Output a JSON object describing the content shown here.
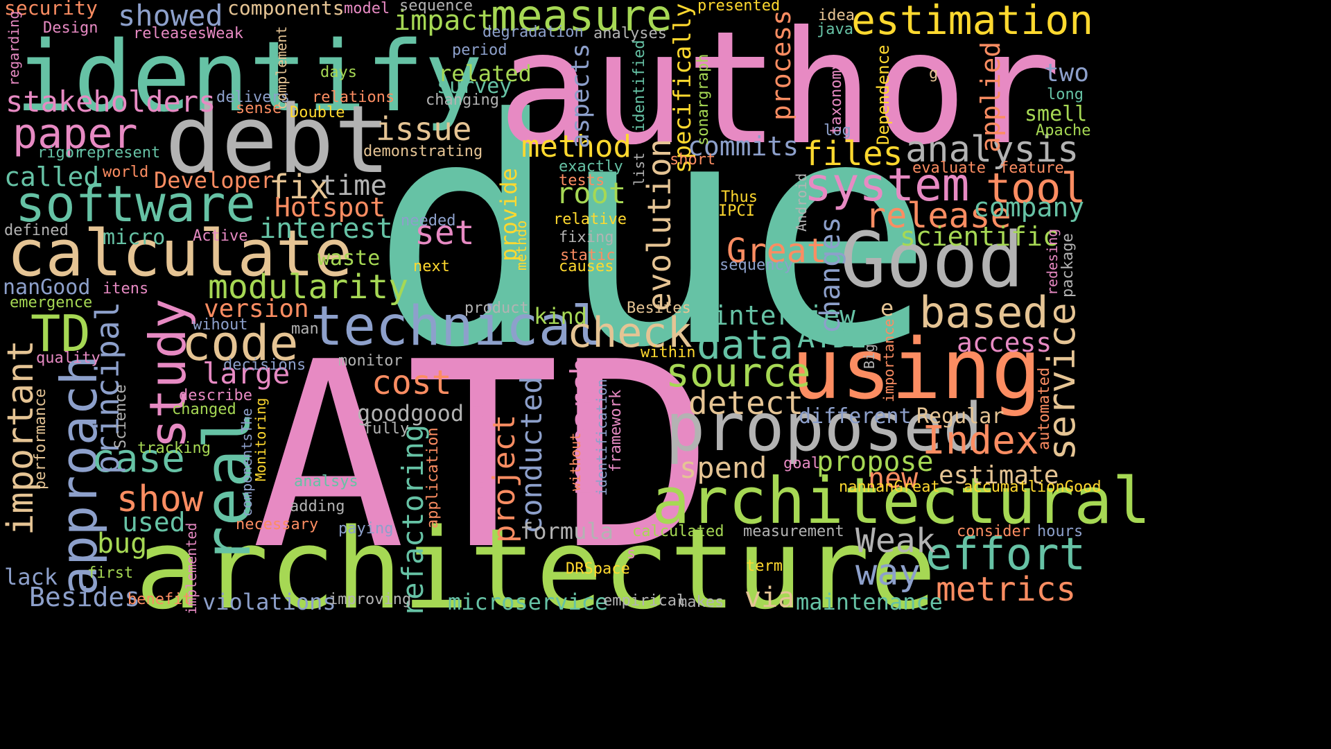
{
  "palette": {
    "teal": "#66c2a5",
    "orange": "#fc8d62",
    "blue": "#8da0cb",
    "pink": "#e78ac3",
    "green": "#a6d854",
    "yellow": "#ffd92f",
    "tan": "#e5c494",
    "gray": "#b3b3b3",
    "background": "#000000"
  },
  "words": [
    {
      "text": "due",
      "color": "teal"
    },
    {
      "text": "ATD",
      "color": "pink"
    },
    {
      "text": "author",
      "color": "pink"
    },
    {
      "text": "architecture",
      "color": "green"
    },
    {
      "text": "identify",
      "color": "teal"
    },
    {
      "text": "debt",
      "color": "gray"
    },
    {
      "text": "Good",
      "color": "gray"
    },
    {
      "text": "using",
      "color": "orange"
    },
    {
      "text": "architectural",
      "color": "green"
    },
    {
      "text": "proposed",
      "color": "gray"
    },
    {
      "text": "calculate",
      "color": "tan"
    },
    {
      "text": "software",
      "color": "teal"
    },
    {
      "text": "technical",
      "color": "blue"
    },
    {
      "text": "study",
      "color": "pink"
    },
    {
      "text": "real",
      "color": "teal"
    },
    {
      "text": "code",
      "color": "tan"
    },
    {
      "text": "approach",
      "color": "blue"
    },
    {
      "text": "paper",
      "color": "pink"
    },
    {
      "text": "measure",
      "color": "green"
    },
    {
      "text": "estimation",
      "color": "yellow"
    },
    {
      "text": "system",
      "color": "pink"
    },
    {
      "text": "based",
      "color": "tan"
    },
    {
      "text": "effort",
      "color": "teal"
    },
    {
      "text": "modularity",
      "color": "green"
    },
    {
      "text": "check",
      "color": "tan"
    },
    {
      "text": "source",
      "color": "green"
    },
    {
      "text": "data",
      "color": "teal"
    },
    {
      "text": "important",
      "color": "tan"
    },
    {
      "text": "TD",
      "color": "green"
    },
    {
      "text": "case",
      "color": "teal"
    },
    {
      "text": "show",
      "color": "orange"
    },
    {
      "text": "principal",
      "color": "blue"
    },
    {
      "text": "analysis",
      "color": "gray"
    },
    {
      "text": "tool",
      "color": "orange"
    },
    {
      "text": "release",
      "color": "orange"
    },
    {
      "text": "Index",
      "color": "orange"
    },
    {
      "text": "metrics",
      "color": "orange"
    },
    {
      "text": "service",
      "color": "tan"
    },
    {
      "text": "evolution",
      "color": "tan"
    },
    {
      "text": "cost",
      "color": "orange"
    },
    {
      "text": "way",
      "color": "blue"
    },
    {
      "text": "Weak",
      "color": "gray"
    },
    {
      "text": "issue",
      "color": "tan"
    },
    {
      "text": "method",
      "color": "yellow"
    },
    {
      "text": "files",
      "color": "yellow"
    },
    {
      "text": "stakeholders",
      "color": "pink"
    },
    {
      "text": "showed",
      "color": "blue"
    },
    {
      "text": "impact",
      "color": "green"
    },
    {
      "text": "interest",
      "color": "teal"
    },
    {
      "text": "detect",
      "color": "tan"
    },
    {
      "text": "large",
      "color": "pink"
    },
    {
      "text": "fix",
      "color": "tan"
    },
    {
      "text": "set",
      "color": "pink"
    },
    {
      "text": "Great",
      "color": "orange"
    },
    {
      "text": "interview",
      "color": "teal"
    },
    {
      "text": "ATDI",
      "color": "teal"
    },
    {
      "text": "project",
      "color": "orange"
    },
    {
      "text": "research",
      "color": "pink"
    },
    {
      "text": "conducted",
      "color": "blue"
    },
    {
      "text": "refactoring",
      "color": "teal"
    },
    {
      "text": "propose",
      "color": "green"
    },
    {
      "text": "estimate",
      "color": "tan"
    },
    {
      "text": "spend",
      "color": "tan"
    },
    {
      "text": "root",
      "color": "green"
    },
    {
      "text": "time",
      "color": "gray"
    },
    {
      "text": "Hotspot",
      "color": "orange"
    },
    {
      "text": "version",
      "color": "orange"
    },
    {
      "text": "company",
      "color": "teal"
    },
    {
      "text": "scientific",
      "color": "green"
    },
    {
      "text": "access",
      "color": "pink"
    },
    {
      "text": "changes",
      "color": "blue"
    },
    {
      "text": "commits",
      "color": "blue"
    },
    {
      "text": "applied",
      "color": "orange"
    },
    {
      "text": "process",
      "color": "orange"
    },
    {
      "text": "aspects",
      "color": "blue"
    },
    {
      "text": "specifically",
      "color": "yellow"
    },
    {
      "text": "called",
      "color": "teal"
    },
    {
      "text": "Developer",
      "color": "orange"
    },
    {
      "text": "micro",
      "color": "teal"
    },
    {
      "text": "nanGood",
      "color": "blue"
    },
    {
      "text": "used",
      "color": "teal"
    },
    {
      "text": "bug",
      "color": "green"
    },
    {
      "text": "lack",
      "color": "blue"
    },
    {
      "text": "Besides",
      "color": "blue"
    },
    {
      "text": "violations",
      "color": "blue"
    },
    {
      "text": "microservice",
      "color": "teal"
    },
    {
      "text": "via",
      "color": "tan"
    },
    {
      "text": "maintenance",
      "color": "teal"
    },
    {
      "text": "new",
      "color": "orange"
    },
    {
      "text": "formula",
      "color": "gray"
    },
    {
      "text": "goodgood",
      "color": "gray"
    },
    {
      "text": "different",
      "color": "blue"
    },
    {
      "text": "Regular",
      "color": "tan"
    },
    {
      "text": "kind",
      "color": "green"
    },
    {
      "text": "survey",
      "color": "teal"
    },
    {
      "text": "related",
      "color": "green"
    },
    {
      "text": "waste",
      "color": "green"
    },
    {
      "text": "provide",
      "color": "yellow"
    },
    {
      "text": "components",
      "color": "tan"
    },
    {
      "text": "security",
      "color": "orange"
    },
    {
      "text": "Design",
      "color": "pink"
    },
    {
      "text": "releasesWeak",
      "color": "pink"
    },
    {
      "text": "degradation",
      "color": "blue"
    },
    {
      "text": "analyses",
      "color": "gray"
    },
    {
      "text": "period",
      "color": "blue"
    },
    {
      "text": "days",
      "color": "green"
    },
    {
      "text": "relations",
      "color": "orange"
    },
    {
      "text": "changing",
      "color": "gray"
    },
    {
      "text": "delivers",
      "color": "blue"
    },
    {
      "text": "sense",
      "color": "orange"
    },
    {
      "text": "Double",
      "color": "yellow"
    },
    {
      "text": "rigor",
      "color": "teal"
    },
    {
      "text": "represent",
      "color": "teal"
    },
    {
      "text": "demonstrating",
      "color": "tan"
    },
    {
      "text": "world",
      "color": "orange"
    },
    {
      "text": "exactly",
      "color": "teal"
    },
    {
      "text": "tests",
      "color": "orange"
    },
    {
      "text": "relative",
      "color": "yellow"
    },
    {
      "text": "fixing",
      "color": "gray"
    },
    {
      "text": "static",
      "color": "orange"
    },
    {
      "text": "causes",
      "color": "yellow"
    },
    {
      "text": "next",
      "color": "yellow"
    },
    {
      "text": "needed",
      "color": "blue"
    },
    {
      "text": "defined",
      "color": "gray"
    },
    {
      "text": "Active",
      "color": "pink"
    },
    {
      "text": "itens",
      "color": "pink"
    },
    {
      "text": "emergence",
      "color": "green"
    },
    {
      "text": "wihout",
      "color": "blue"
    },
    {
      "text": "quality",
      "color": "pink"
    },
    {
      "text": "decisions",
      "color": "blue"
    },
    {
      "text": "describe",
      "color": "pink"
    },
    {
      "text": "changed",
      "color": "green"
    },
    {
      "text": "tracking",
      "color": "green"
    },
    {
      "text": "analsys",
      "color": "teal"
    },
    {
      "text": "adding",
      "color": "gray"
    },
    {
      "text": "necessary",
      "color": "orange"
    },
    {
      "text": "paying",
      "color": "blue"
    },
    {
      "text": "first",
      "color": "green"
    },
    {
      "text": "benefit",
      "color": "orange"
    },
    {
      "text": "improving",
      "color": "gray"
    },
    {
      "text": "empirical",
      "color": "gray"
    },
    {
      "text": "makes",
      "color": "gray"
    },
    {
      "text": "calculated",
      "color": "green"
    },
    {
      "text": "measurement",
      "color": "gray"
    },
    {
      "text": "DRSpace",
      "color": "yellow"
    },
    {
      "text": "term",
      "color": "yellow"
    },
    {
      "text": "consider",
      "color": "orange"
    },
    {
      "text": "hours",
      "color": "blue"
    },
    {
      "text": "accumatlionGood",
      "color": "yellow"
    },
    {
      "text": "nannanGreat",
      "color": "yellow"
    },
    {
      "text": "goal",
      "color": "pink"
    },
    {
      "text": "fully",
      "color": "gray"
    },
    {
      "text": "monitor",
      "color": "gray"
    },
    {
      "text": "man",
      "color": "gray"
    },
    {
      "text": "product",
      "color": "gray"
    },
    {
      "text": "Besites",
      "color": "tan"
    },
    {
      "text": "within",
      "color": "yellow"
    },
    {
      "text": "Thus",
      "color": "yellow"
    },
    {
      "text": "IPCI",
      "color": "yellow"
    },
    {
      "text": "sequency",
      "color": "blue"
    },
    {
      "text": "short",
      "color": "orange"
    },
    {
      "text": "evaluate",
      "color": "orange"
    },
    {
      "text": "feature",
      "color": "orange"
    },
    {
      "text": "two",
      "color": "blue"
    },
    {
      "text": "long",
      "color": "teal"
    },
    {
      "text": "smell",
      "color": "green"
    },
    {
      "text": "Apache",
      "color": "green"
    },
    {
      "text": "idea",
      "color": "tan"
    },
    {
      "text": "java",
      "color": "teal"
    },
    {
      "text": "log",
      "color": "blue"
    },
    {
      "text": "g",
      "color": "tan"
    },
    {
      "text": "e",
      "color": "tan"
    },
    {
      "text": "model",
      "color": "pink"
    },
    {
      "text": "sequence",
      "color": "gray"
    },
    {
      "text": "presented",
      "color": "yellow"
    },
    {
      "text": "s",
      "color": "pink"
    },
    {
      "text": "regarding",
      "color": "pink"
    },
    {
      "text": "complement",
      "color": "tan"
    },
    {
      "text": "performance",
      "color": "tan"
    },
    {
      "text": "Science",
      "color": "gray"
    },
    {
      "text": "componentsThe",
      "color": "blue"
    },
    {
      "text": "Monitoring",
      "color": "yellow"
    },
    {
      "text": "implemented",
      "color": "pink"
    },
    {
      "text": "application",
      "color": "orange"
    },
    {
      "text": "benchmarkingGreat",
      "color": "pink"
    },
    {
      "text": "without",
      "color": "orange"
    },
    {
      "text": "identification",
      "color": "blue"
    },
    {
      "text": "framework",
      "color": "pink"
    },
    {
      "text": "methdo",
      "color": "yellow"
    },
    {
      "text": "identified",
      "color": "teal"
    },
    {
      "text": "list",
      "color": "gray"
    },
    {
      "text": "sonargraph",
      "color": "green"
    },
    {
      "text": "taxonomy",
      "color": "pink"
    },
    {
      "text": "Dependence",
      "color": "yellow"
    },
    {
      "text": "Android",
      "color": "gray"
    },
    {
      "text": "Big",
      "color": "gray"
    },
    {
      "text": "importance",
      "color": "orange"
    },
    {
      "text": "automated",
      "color": "orange"
    },
    {
      "text": "redesing",
      "color": "pink"
    },
    {
      "text": "package",
      "color": "gray"
    }
  ]
}
